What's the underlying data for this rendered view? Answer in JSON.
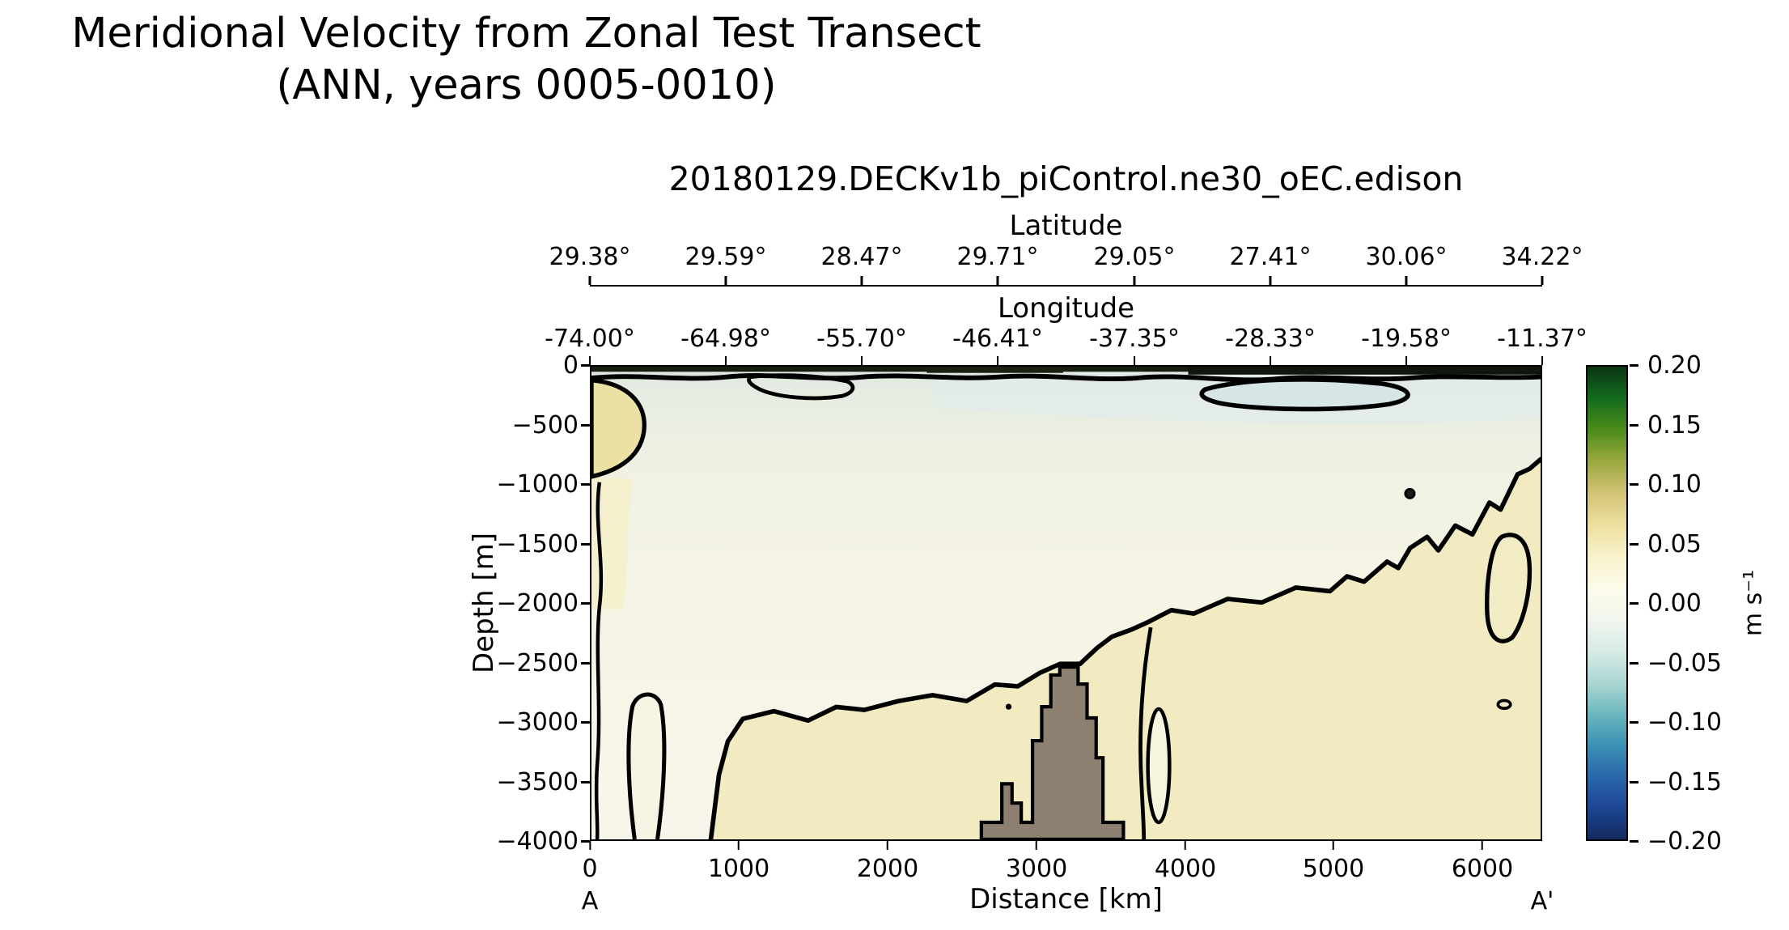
{
  "figure_title": {
    "line1": "Meridional Velocity from Zonal Test Transect",
    "line2": "(ANN, years 0005-0010)"
  },
  "chart_data": {
    "type": "heatmap",
    "subtype": "filled_contour_ocean_depth_transect",
    "title": "20180129.DECKv1b_piControl.ne30_oEC.edison",
    "suptitle": "Meridional Velocity from Zonal Test Transect (ANN, years 0005-0010)",
    "xlabel": "Distance [km]",
    "ylabel": "Depth [m]",
    "xlim_km": [
      0,
      6400
    ],
    "ylim_m": [
      -4000,
      0
    ],
    "x_ticks": [
      "0",
      "1000",
      "2000",
      "3000",
      "4000",
      "5000",
      "6000"
    ],
    "y_ticks": [
      "0",
      "−500",
      "−1000",
      "−1500",
      "−2000",
      "−2500",
      "−3000",
      "−3500",
      "−4000"
    ],
    "endpoints": {
      "start": "A",
      "end": "A'"
    },
    "latitude_axis": {
      "label": "Latitude",
      "ticks": [
        "29.38°",
        "29.59°",
        "28.47°",
        "29.71°",
        "29.05°",
        "27.41°",
        "30.06°",
        "34.22°"
      ]
    },
    "longitude_axis": {
      "label": "Longitude",
      "ticks": [
        "-74.00°",
        "-64.98°",
        "-55.70°",
        "-46.41°",
        "-37.35°",
        "-28.33°",
        "-19.58°",
        "-11.37°"
      ]
    },
    "colorbar": {
      "label": "m s⁻¹",
      "ticks": [
        "0.20",
        "0.15",
        "0.10",
        "0.05",
        "0.00",
        "−0.05",
        "−0.10",
        "−0.15",
        "−0.20"
      ],
      "vmin": -0.2,
      "vmax": 0.2,
      "colors_top_to_bottom": [
        "#0a3514",
        "#136b1e",
        "#4b8c1a",
        "#9aa83e",
        "#d3c276",
        "#ecdf9e",
        "#f8f2cb",
        "#fdfbe9",
        "#f2f6ee",
        "#d9ebe6",
        "#aed7d4",
        "#6db8bf",
        "#3c92b5",
        "#2a67ab",
        "#1d4693",
        "#13295e"
      ]
    },
    "zero_contour_km_depth": [
      [
        805,
        -4000
      ],
      [
        860,
        -3450
      ],
      [
        920,
        -3170
      ],
      [
        1020,
        -2980
      ],
      [
        1230,
        -2915
      ],
      [
        1460,
        -2995
      ],
      [
        1650,
        -2880
      ],
      [
        1840,
        -2905
      ],
      [
        2070,
        -2830
      ],
      [
        2300,
        -2780
      ],
      [
        2530,
        -2830
      ],
      [
        2720,
        -2690
      ],
      [
        2875,
        -2705
      ],
      [
        3025,
        -2590
      ],
      [
        3160,
        -2515
      ],
      [
        3295,
        -2515
      ],
      [
        3410,
        -2380
      ],
      [
        3510,
        -2285
      ],
      [
        3640,
        -2225
      ],
      [
        3755,
        -2160
      ],
      [
        3910,
        -2060
      ],
      [
        4060,
        -2090
      ],
      [
        4290,
        -1965
      ],
      [
        4520,
        -1995
      ],
      [
        4750,
        -1870
      ],
      [
        4980,
        -1900
      ],
      [
        5095,
        -1775
      ],
      [
        5210,
        -1820
      ],
      [
        5365,
        -1650
      ],
      [
        5440,
        -1705
      ],
      [
        5520,
        -1535
      ],
      [
        5635,
        -1440
      ],
      [
        5710,
        -1555
      ],
      [
        5825,
        -1345
      ],
      [
        5940,
        -1420
      ],
      [
        6055,
        -1150
      ],
      [
        6130,
        -1210
      ],
      [
        6245,
        -910
      ],
      [
        6325,
        -865
      ],
      [
        6400,
        -785
      ]
    ],
    "bathymetry_outline_km_depth": [
      [
        2629,
        -4000
      ],
      [
        2629,
        -3856
      ],
      [
        2767,
        -3856
      ],
      [
        2767,
        -3530
      ],
      [
        2836,
        -3530
      ],
      [
        2836,
        -3693
      ],
      [
        2898,
        -3693
      ],
      [
        2898,
        -3856
      ],
      [
        2974,
        -3856
      ],
      [
        2974,
        -3165
      ],
      [
        3036,
        -3165
      ],
      [
        3036,
        -2878
      ],
      [
        3097,
        -2878
      ],
      [
        3097,
        -2609
      ],
      [
        3158,
        -2609
      ],
      [
        3158,
        -2542
      ],
      [
        3281,
        -2542
      ],
      [
        3281,
        -2686
      ],
      [
        3342,
        -2686
      ],
      [
        3342,
        -2973
      ],
      [
        3403,
        -2973
      ],
      [
        3403,
        -3309
      ],
      [
        3449,
        -3309
      ],
      [
        3449,
        -3856
      ],
      [
        3587,
        -3856
      ],
      [
        3587,
        -4000
      ]
    ],
    "field_description": "Velocities are weak (within about ±0.05 m s⁻¹): slightly negative (pale blue-green) near the surface and upper ocean, slightly positive (pale yellow) at depth, at the left boundary and toward the right end; the thick black line is the 0.00 m s⁻¹ contour and the brown mass near 2700–3600 km is bottom topography rising to about −2550 m."
  }
}
